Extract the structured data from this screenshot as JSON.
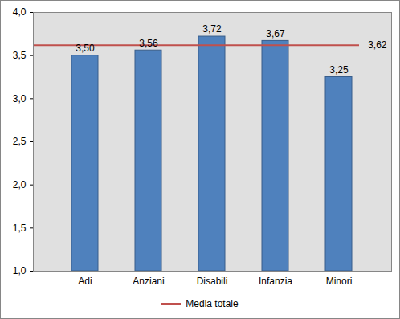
{
  "chart_data": {
    "type": "bar",
    "categories": [
      "Adi",
      "Anziani",
      "Disabili",
      "Infanzia",
      "Minori"
    ],
    "values": [
      3.5,
      3.56,
      3.72,
      3.67,
      3.25
    ],
    "value_labels": [
      "3,50",
      "3,56",
      "3,72",
      "3,67",
      "3,25"
    ],
    "color": "#4f81bd",
    "data_labels": true,
    "ylim": [
      1,
      4
    ],
    "yticks": [
      {
        "value": 1,
        "label": "1,0"
      },
      {
        "value": 1.5,
        "label": "1,5"
      },
      {
        "value": 2,
        "label": "2,0"
      },
      {
        "value": 2.5,
        "label": "2,5"
      },
      {
        "value": 3,
        "label": "3,0"
      },
      {
        "value": 3.5,
        "label": "3,5"
      },
      {
        "value": 4,
        "label": "4,0"
      }
    ],
    "grid": false,
    "legend": "bottom",
    "reference_line": {
      "name": "Media totale",
      "value": 3.62,
      "value_label": "3,62",
      "color": "#c0504d"
    }
  }
}
